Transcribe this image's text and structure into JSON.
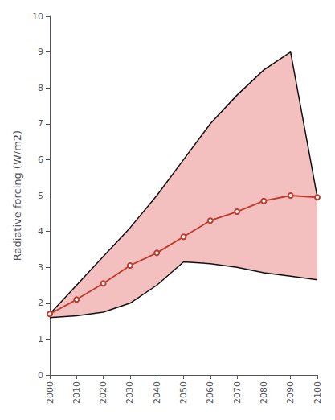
{
  "chart_data": {
    "type": "line",
    "ylabel": "Radiative forcing (W/m2)",
    "x": [
      2000,
      2010,
      2020,
      2030,
      2040,
      2050,
      2060,
      2070,
      2080,
      2090,
      2100
    ],
    "series": [
      {
        "type": "band",
        "color": "#e88080",
        "upper": [
          1.7,
          2.5,
          3.3,
          4.1,
          5.0,
          6.0,
          7.0,
          7.8,
          8.5,
          9.0,
          4.95
        ],
        "lower": [
          1.6,
          1.65,
          1.75,
          2.0,
          2.5,
          3.15,
          3.1,
          3.0,
          2.85,
          2.75,
          2.65
        ]
      },
      {
        "type": "line",
        "color": "#111111",
        "values": [
          1.7,
          2.5,
          3.3,
          4.1,
          5.0,
          6.0,
          7.0,
          7.8,
          8.5,
          9.0,
          4.95
        ]
      },
      {
        "type": "line",
        "color": "#111111",
        "values": [
          1.6,
          1.65,
          1.75,
          2.0,
          2.5,
          3.15,
          3.1,
          3.0,
          2.85,
          2.75,
          2.65
        ]
      },
      {
        "type": "line",
        "color": "#c0392b",
        "marker": "circle",
        "values": [
          1.7,
          2.1,
          2.55,
          3.05,
          3.4,
          3.85,
          4.3,
          4.55,
          4.85,
          5.0,
          4.95
        ]
      }
    ],
    "xlim": [
      2000,
      2100
    ],
    "xticks": [
      2000,
      2010,
      2020,
      2030,
      2040,
      2050,
      2060,
      2070,
      2080,
      2090,
      2100
    ],
    "ylim": [
      0,
      10
    ],
    "yticks": [
      0,
      1,
      2,
      3,
      4,
      5,
      6,
      7,
      8,
      9,
      10
    ],
    "grid": false
  }
}
